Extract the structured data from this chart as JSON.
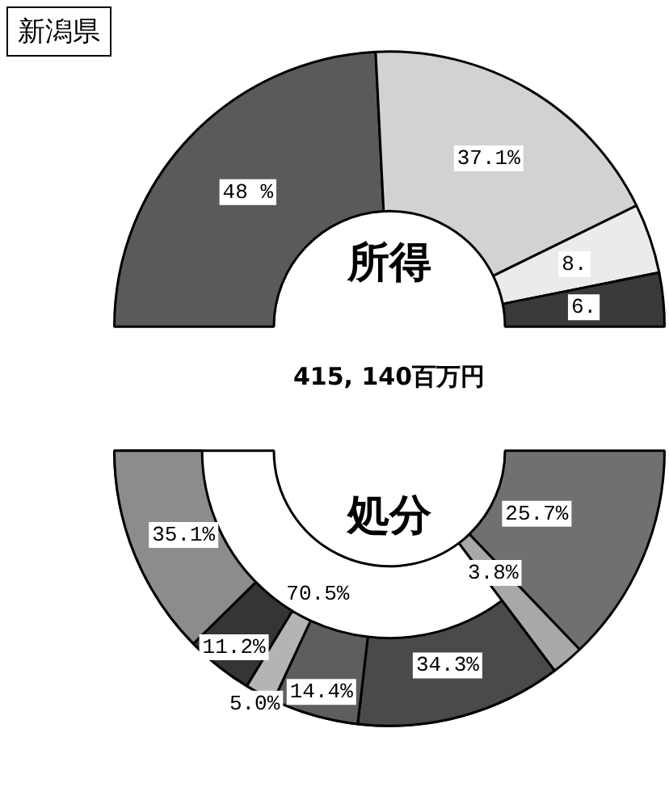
{
  "chart_data": [
    {
      "type": "donut",
      "title": "新潟県",
      "annotations": [
        "所得",
        "415, 140百万円"
      ],
      "categories": [
        null,
        null,
        null,
        null
      ],
      "values": [
        48.4,
        37.1,
        8.2,
        6.3
      ],
      "colors": [
        "#5a5a5a",
        "#d2d2d2",
        "#ebebeb",
        "#3a3a3a"
      ],
      "value_labels": [
        "48 %",
        "37.1%",
        "8.",
        "6."
      ]
    },
    {
      "type": "donut",
      "annotations": [
        "処分"
      ],
      "categories": [
        null,
        null,
        null
      ],
      "values": [
        25.7,
        3.8,
        70.5
      ],
      "colors": [
        "#707070",
        "#a8a8a8",
        "#ffffff"
      ],
      "value_labels": [
        "25.7%",
        "3.8%",
        "70.5%"
      ]
    },
    {
      "type": "donut",
      "categories": [
        null,
        null,
        null,
        null,
        null
      ],
      "values": [
        34.3,
        14.4,
        5.0,
        11.2,
        35.1
      ],
      "colors": [
        "#4a4a4a",
        "#5e5e5e",
        "#b4b4b4",
        "#353535",
        "#8c8c8c"
      ],
      "value_labels": [
        "34.3%",
        "14.4%",
        "5.0%",
        "11.2%",
        "35.1%"
      ]
    }
  ]
}
